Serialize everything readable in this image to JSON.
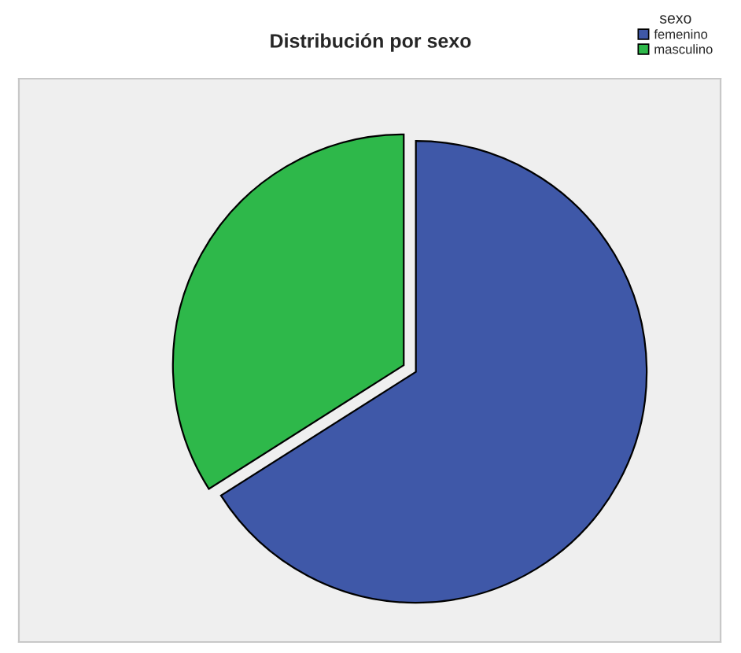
{
  "chart_data": {
    "type": "pie",
    "title": "Distribución por sexo",
    "legend_title": "sexo",
    "categories": [
      "femenino",
      "masculino"
    ],
    "values": [
      66,
      34
    ],
    "colors": [
      "#3f58a8",
      "#2eb84a"
    ],
    "legend": "top right"
  }
}
